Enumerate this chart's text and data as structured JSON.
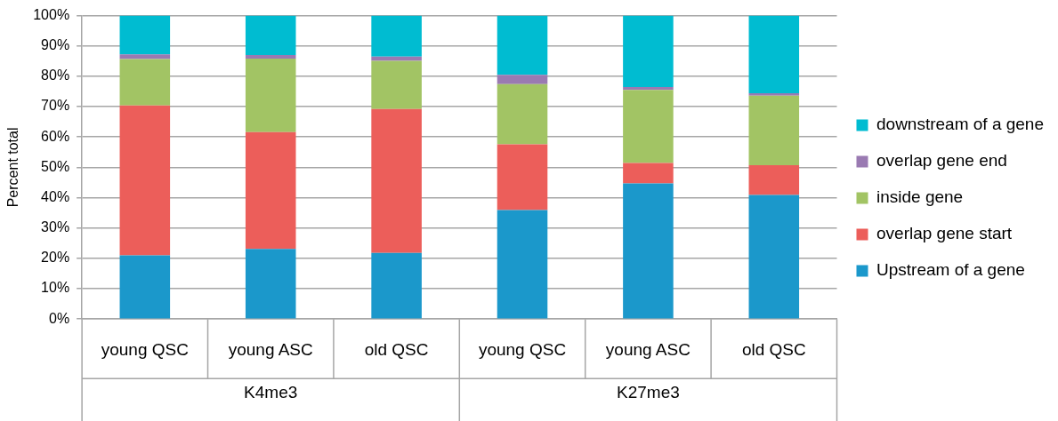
{
  "chart_data": {
    "type": "bar",
    "stacked": true,
    "ylabel": "Percent total",
    "categories": [
      "young QSC",
      "young ASC",
      "old QSC",
      "young QSC",
      "young ASC",
      "old QSC"
    ],
    "annotations": [
      "K4me3",
      "K27me3"
    ],
    "series": [
      {
        "name": "Upstream of a gene",
        "color": "#1b98cb",
        "values": [
          21,
          23.1,
          21.8,
          35.9,
          44.7,
          40.9
        ]
      },
      {
        "name": "overlap gene start",
        "color": "#ec5e5a",
        "values": [
          49.4,
          38.5,
          47.4,
          21.7,
          6.7,
          9.8
        ]
      },
      {
        "name": "inside gene",
        "color": "#a2c464",
        "values": [
          15.3,
          24.2,
          15.9,
          19.8,
          24.1,
          22.9
        ]
      },
      {
        "name": "overlap gene end",
        "color": "#9a7ab2",
        "values": [
          1.5,
          1.2,
          1.4,
          3.1,
          1,
          0.8
        ]
      },
      {
        "name": "downstream of a gene",
        "color": "#00bcd1",
        "values": [
          12.8,
          13,
          13.5,
          19.5,
          23.5,
          25.6
        ]
      }
    ],
    "ylim": [
      0,
      100
    ],
    "yticks": [
      {
        "value": 0,
        "label": "0%"
      },
      {
        "value": 10,
        "label": "10%"
      },
      {
        "value": 20,
        "label": "20%"
      },
      {
        "value": 30,
        "label": "30%"
      },
      {
        "value": 40,
        "label": "40%"
      },
      {
        "value": 50,
        "label": "50%"
      },
      {
        "value": 60,
        "label": "60%"
      },
      {
        "value": 70,
        "label": "70%"
      },
      {
        "value": 80,
        "label": "80%"
      },
      {
        "value": 90,
        "label": "90%"
      },
      {
        "value": 100,
        "label": "100%"
      }
    ],
    "grid": "y",
    "legend": "right"
  }
}
